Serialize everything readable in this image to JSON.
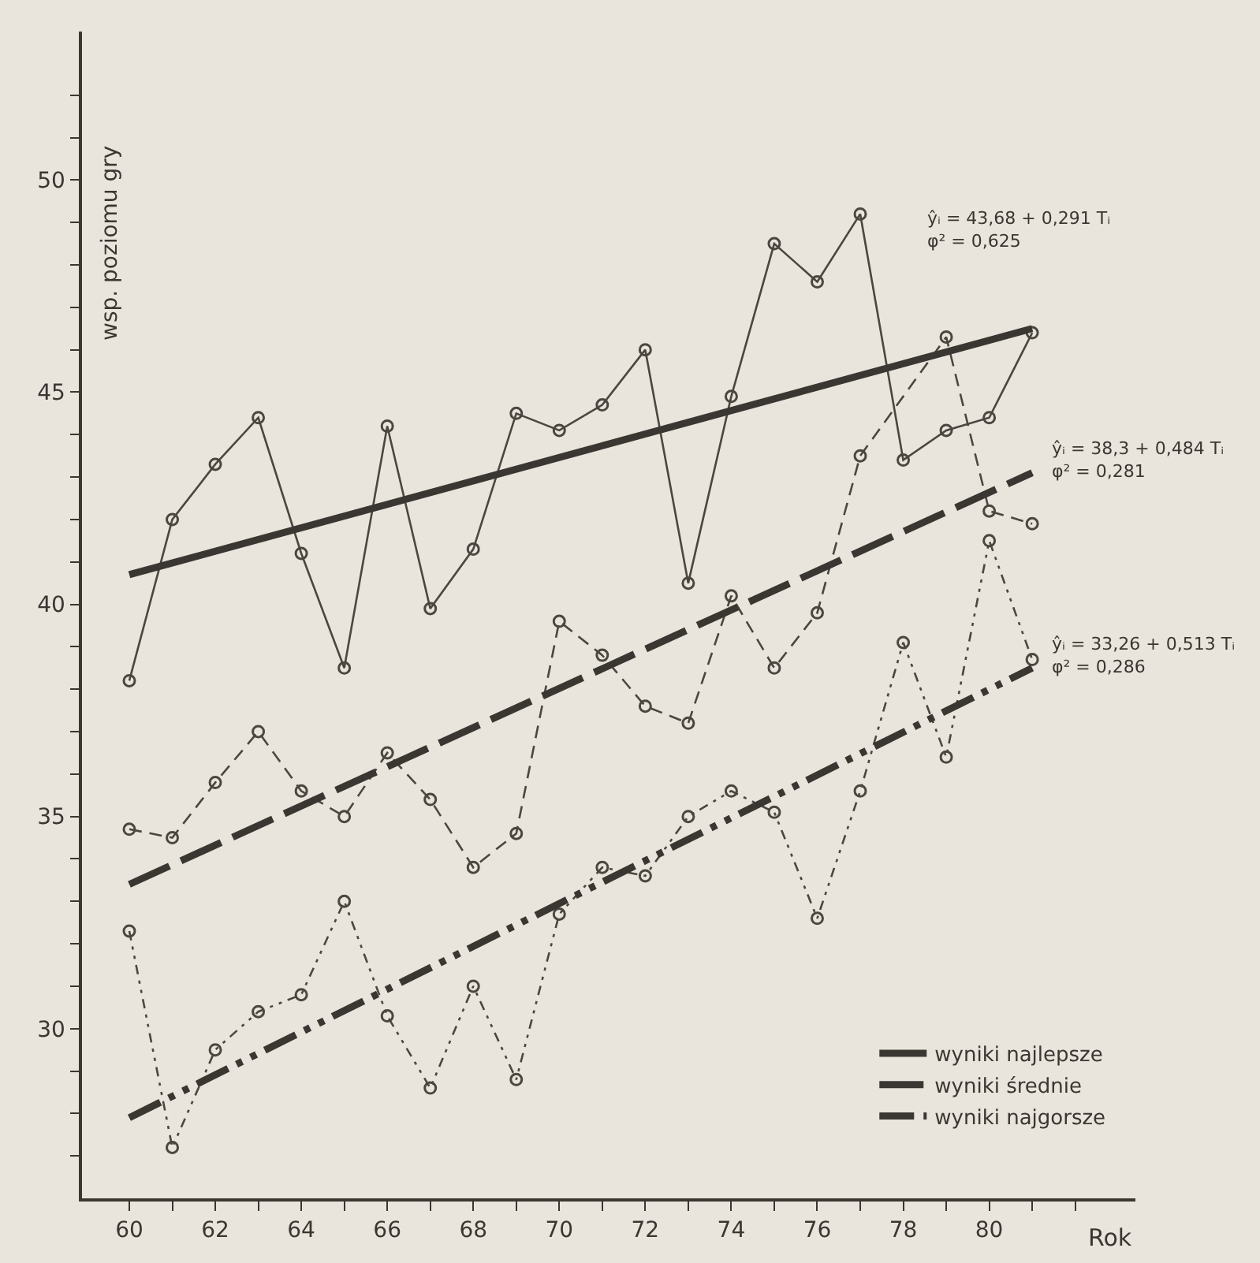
{
  "chart_data": {
    "type": "line",
    "xlabel": "Rok",
    "ylabel": "wsp. poziomu gry",
    "x": [
      60,
      61,
      62,
      63,
      64,
      65,
      66,
      67,
      68,
      69,
      70,
      71,
      72,
      73,
      74,
      75,
      76,
      77,
      78,
      79,
      80,
      81
    ],
    "series": [
      {
        "color": "#4a4640",
        "marker": "circle",
        "line_style": "solid",
        "values": [
          38.2,
          42.0,
          43.3,
          44.4,
          41.2,
          38.5,
          44.2,
          39.9,
          41.3,
          44.5,
          44.1,
          44.7,
          46.0,
          40.5,
          44.9,
          48.5,
          47.6,
          49.2,
          43.4,
          44.1,
          44.4,
          46.4
        ]
      },
      {
        "color": "#4a4640",
        "marker": "circle",
        "line_style": "dashed",
        "values": [
          34.7,
          34.5,
          35.8,
          37.0,
          35.6,
          35.0,
          36.5,
          35.4,
          33.8,
          34.6,
          39.6,
          38.8,
          37.6,
          37.2,
          40.2,
          38.5,
          39.8,
          43.5,
          null,
          46.3,
          42.2,
          41.9
        ]
      },
      {
        "color": "#4a4640",
        "marker": "circle",
        "line_style": "dotted",
        "values": [
          32.3,
          27.2,
          29.5,
          30.4,
          30.8,
          33.0,
          30.3,
          28.6,
          31.0,
          28.8,
          32.7,
          33.8,
          33.6,
          35.0,
          35.6,
          35.1,
          32.6,
          35.6,
          39.1,
          36.4,
          41.5,
          38.7
        ]
      },
      {
        "name": "wyniki najlepsze",
        "color": "#3a3632",
        "marker": "none",
        "line_style": "solid",
        "values": [
          40.7,
          null,
          null,
          null,
          null,
          null,
          null,
          null,
          null,
          null,
          null,
          null,
          null,
          null,
          null,
          null,
          null,
          null,
          null,
          null,
          null,
          46.5
        ]
      },
      {
        "name": "wyniki średnie",
        "color": "#3a3632",
        "marker": "none",
        "line_style": "dashed",
        "values": [
          33.4,
          null,
          null,
          null,
          null,
          null,
          null,
          null,
          null,
          null,
          null,
          null,
          null,
          null,
          null,
          null,
          null,
          null,
          null,
          null,
          null,
          43.1
        ]
      },
      {
        "name": "wyniki najgorsze",
        "color": "#3a3632",
        "marker": "none",
        "line_style": "dotted",
        "values": [
          27.9,
          null,
          null,
          null,
          null,
          null,
          null,
          null,
          null,
          null,
          null,
          null,
          null,
          null,
          null,
          null,
          null,
          null,
          null,
          null,
          null,
          38.5
        ]
      }
    ],
    "annotations": [
      "ŷᵢ = 43,68 + 0,291 Tᵢ\nφ² = 0,625",
      {
        "text": "ŷᵢ = 38,3 + 0,484 Tᵢ\nφ² = 0,281",
        "x": 81,
        "y": 43.1
      },
      {
        "text": "ŷᵢ = 33,26 + 0,513 Tᵢ\nφ² = 0,286",
        "x": 81,
        "y": 38.5
      }
    ],
    "xlim": [
      58.9,
      83.4
    ],
    "xticks": [
      60,
      {
        "value": 61,
        "label": null
      },
      62,
      {
        "value": 63,
        "label": null
      },
      64,
      {
        "value": 65,
        "label": null
      },
      66,
      {
        "value": 67,
        "label": null
      },
      68,
      {
        "value": 69,
        "label": null
      },
      70,
      {
        "value": 71,
        "label": null
      },
      72,
      {
        "value": 73,
        "label": null
      },
      74,
      {
        "value": 75,
        "label": null
      },
      76,
      {
        "value": 77,
        "label": null
      },
      78,
      {
        "value": 79,
        "label": null
      },
      80,
      {
        "value": 81,
        "label": null
      },
      {
        "value": 82,
        "label": null
      }
    ],
    "ylim": [
      26.0,
      53.5
    ],
    "yticks": [
      {
        "value": 27,
        "label": null
      },
      {
        "value": 28,
        "label": null
      },
      {
        "value": 29,
        "label": null
      },
      30,
      {
        "value": 31,
        "label": null
      },
      {
        "value": 32,
        "label": null
      },
      {
        "value": 33,
        "label": null
      },
      {
        "value": 34,
        "label": null
      },
      35,
      {
        "value": 36,
        "label": null
      },
      {
        "value": 37,
        "label": null
      },
      {
        "value": 38,
        "label": null
      },
      {
        "value": 39,
        "label": null
      },
      40,
      {
        "value": 41,
        "label": null
      },
      {
        "value": 42,
        "label": null
      },
      {
        "value": 43,
        "label": null
      },
      {
        "value": 44,
        "label": null
      },
      45,
      {
        "value": 46,
        "label": null
      },
      {
        "value": 47,
        "label": null
      },
      {
        "value": 48,
        "label": null
      },
      {
        "value": 49,
        "label": null
      },
      50,
      {
        "value": 51,
        "label": null
      },
      {
        "value": 52,
        "label": null
      }
    ],
    "grid": false,
    "legend": "bottom right"
  }
}
